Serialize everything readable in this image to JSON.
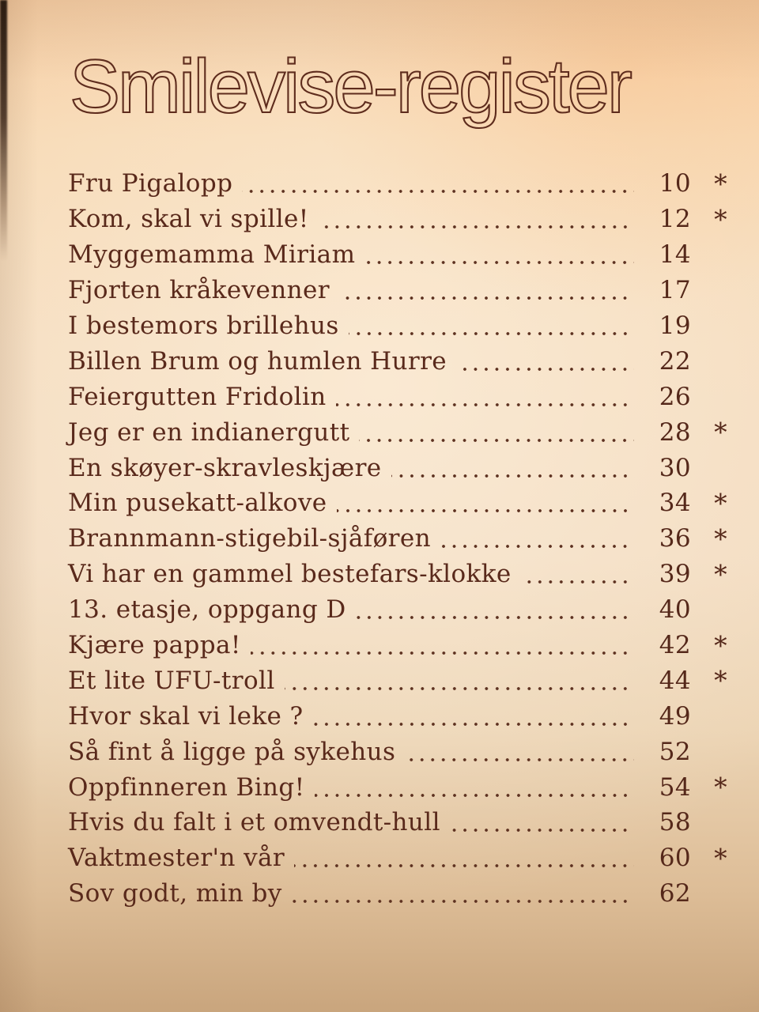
{
  "doc": {
    "title": "Smilevise-register",
    "star_symbol": "*",
    "ink_color": "#59291b",
    "paper_top_color": "#f6cda3",
    "paper_bottom_color": "#c9a57d",
    "entries": [
      {
        "title": "Fru Pigalopp",
        "page": "10",
        "starred": true
      },
      {
        "title": "Kom, skal vi spille!",
        "page": "12",
        "starred": true
      },
      {
        "title": "Myggemamma Miriam",
        "page": "14",
        "starred": false
      },
      {
        "title": "Fjorten kråkevenner",
        "page": "17",
        "starred": false
      },
      {
        "title": "I bestemors brillehus",
        "page": "19",
        "starred": false
      },
      {
        "title": "Billen Brum og humlen Hurre",
        "page": "22",
        "starred": false
      },
      {
        "title": "Feiergutten Fridolin",
        "page": "26",
        "starred": false
      },
      {
        "title": "Jeg er en indianergutt",
        "page": "28",
        "starred": true
      },
      {
        "title": "En skøyer-skravleskjære",
        "page": "30",
        "starred": false
      },
      {
        "title": "Min pusekatt-alkove",
        "page": "34",
        "starred": true
      },
      {
        "title": "Brannmann-stigebil-sjåføren",
        "page": "36",
        "starred": true
      },
      {
        "title": "Vi har en gammel bestefars-klokke",
        "page": "39",
        "starred": true
      },
      {
        "title": "13. etasje, oppgang D",
        "page": "40",
        "starred": false
      },
      {
        "title": "Kjære pappa!",
        "page": "42",
        "starred": true
      },
      {
        "title": "Et lite UFU-troll",
        "page": "44",
        "starred": true
      },
      {
        "title": "Hvor skal vi leke ?",
        "page": "49",
        "starred": false
      },
      {
        "title": "Så fint å ligge på sykehus",
        "page": "52",
        "starred": false
      },
      {
        "title": "Oppfinneren Bing!",
        "page": "54",
        "starred": true
      },
      {
        "title": "Hvis du falt i et omvendt-hull",
        "page": "58",
        "starred": false
      },
      {
        "title": "Vaktmester'n vår",
        "page": "60",
        "starred": true
      },
      {
        "title": "Sov godt, min by",
        "page": "62",
        "starred": false
      }
    ]
  }
}
